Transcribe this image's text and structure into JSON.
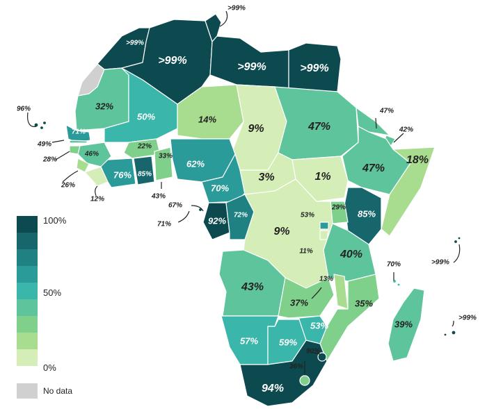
{
  "colors": {
    "bin9": "#0c4a4f",
    "bin8": "#16666b",
    "bin7": "#1f8182",
    "bin6": "#2a9b99",
    "bin5": "#3bb6aa",
    "bin4": "#5ec49b",
    "bin3": "#7fd08a",
    "bin2": "#a8dd8f",
    "bin1": "#d5edb7",
    "nodata": "#d0d0d0",
    "outline": "#ffffff"
  },
  "legend": {
    "top": "100%",
    "mid": "50%",
    "bottom": "0%",
    "nodata": "No data"
  },
  "labels": {
    "algeria": ">99%",
    "libya": ">99%",
    "egypt": ">99%",
    "tunisia": ">99%",
    "tunisia_callout": ">99%",
    "mauritania": "32%",
    "mali": "50%",
    "niger": "14%",
    "chad": "9%",
    "sudan": "47%",
    "ethiopia": "47%",
    "somalia": "18%",
    "djibouti": "47%",
    "eritrea": "42%",
    "senegal": "71%",
    "gambia": "49%",
    "guinea_bissau": "28%",
    "sierra_leone": "26%",
    "liberia": "12%",
    "guinea": "46%",
    "burkina": "22%",
    "ghana": "33%",
    "ivory": "43%",
    "cote_ivoire": "76%",
    "ghana_big": "85%",
    "nigeria": "62%",
    "cameroon": "70%",
    "car": "3%",
    "south_sudan": "1%",
    "kenya": "85%",
    "uganda": "29%",
    "drc": "9%",
    "congo": "72%",
    "gabon": "92%",
    "eq_guinea": "67%",
    "sao_tome": "71%",
    "rwanda": "53%",
    "burundi": "11%",
    "tanzania": "40%",
    "angola": "43%",
    "zambia": "37%",
    "malawi": "13%",
    "mozambique": "35%",
    "zimbabwe": "53%",
    "namibia": "57%",
    "botswana": "59%",
    "south_africa": "94%",
    "eswatini": "90%",
    "lesotho": "36%",
    "madagascar": "39%",
    "comoros": "70%",
    "seychelles": ">99%",
    "mauritius": ">99%",
    "cape_verde": "96%"
  }
}
